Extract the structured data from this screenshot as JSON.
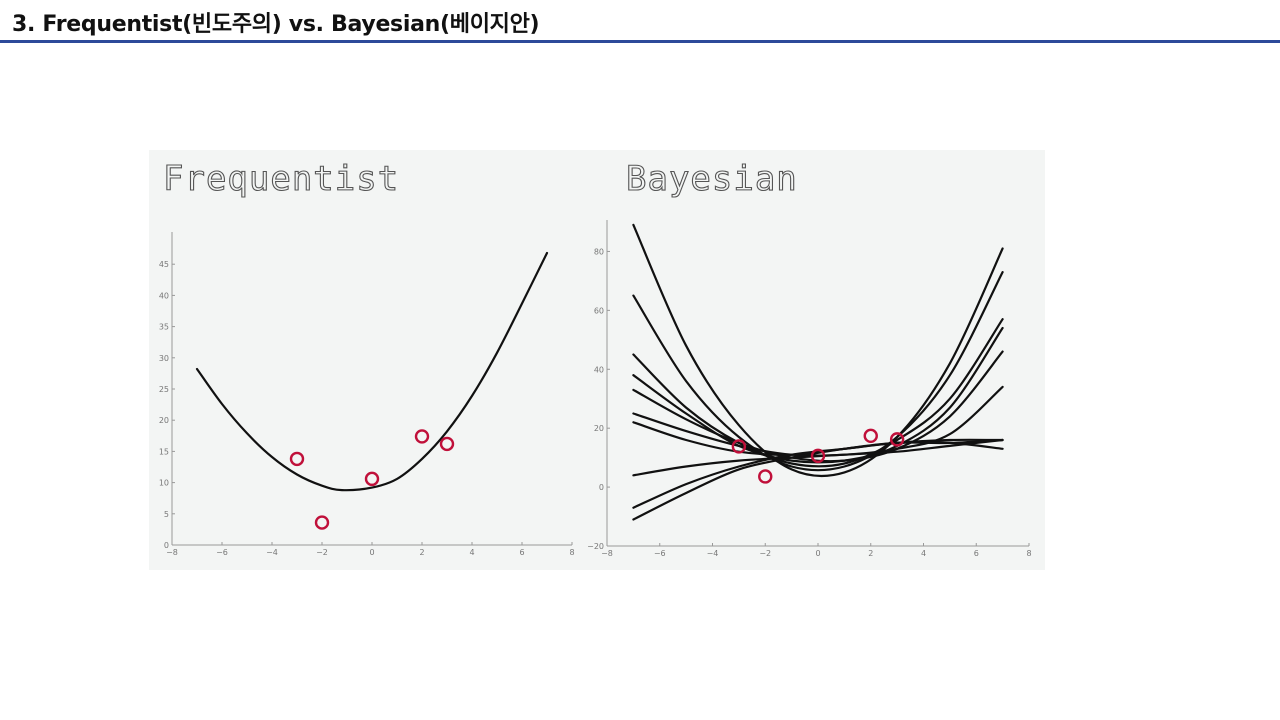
{
  "slide": {
    "title": "3. Frequentist(빈도주의) vs. Bayesian(베이지안)",
    "accent_color": "#2d4a9a"
  },
  "chart_data": [
    {
      "type": "line",
      "title": "Frequentist",
      "xlim": [
        -8,
        8
      ],
      "ylim": [
        0,
        50
      ],
      "xticks": [
        -8,
        -6,
        -4,
        -2,
        0,
        2,
        4,
        6,
        8
      ],
      "yticks": [
        0,
        5,
        10,
        15,
        20,
        25,
        30,
        35,
        40,
        45
      ],
      "grid": false,
      "points": {
        "x": [
          -3,
          -2,
          0,
          2,
          3
        ],
        "y": [
          13.8,
          3.6,
          10.6,
          17.4,
          16.2
        ],
        "marker": "open-circle",
        "color": "#c0103a"
      },
      "series": [
        {
          "x": [
            -7,
            -6,
            -5,
            -4,
            -3,
            -2,
            -1.2,
            0,
            1,
            2,
            3,
            4,
            5,
            6,
            7
          ],
          "y": [
            28.2,
            22.6,
            17.9,
            14.1,
            11.3,
            9.5,
            8.8,
            9.2,
            10.6,
            13.8,
            18.2,
            23.9,
            30.8,
            38.7,
            46.8
          ],
          "color": "#111111"
        }
      ]
    },
    {
      "type": "line",
      "title": "Bayesian",
      "xlim": [
        -8,
        8
      ],
      "ylim": [
        -20,
        90
      ],
      "xticks": [
        -8,
        -6,
        -4,
        -2,
        0,
        2,
        4,
        6,
        8
      ],
      "yticks": [
        -20,
        0,
        20,
        40,
        60,
        80
      ],
      "grid": false,
      "points": {
        "x": [
          -3,
          -2,
          0,
          2,
          3
        ],
        "y": [
          13.8,
          3.6,
          10.6,
          17.4,
          16.2
        ],
        "marker": "open-circle",
        "color": "#c0103a"
      },
      "series": [
        {
          "x": [
            -7,
            -5,
            -3,
            -1,
            1,
            3,
            5,
            7
          ],
          "y": [
            89,
            48,
            21,
            6,
            5,
            17,
            42,
            81
          ],
          "color": "#111111"
        },
        {
          "x": [
            -7,
            -5,
            -3,
            -1,
            1,
            3,
            5,
            7
          ],
          "y": [
            65,
            36,
            17,
            7,
            7,
            17,
            38,
            73
          ],
          "color": "#111111"
        },
        {
          "x": [
            -7,
            -5,
            -3,
            -1,
            1,
            3,
            5,
            7
          ],
          "y": [
            45,
            27,
            15,
            8,
            8,
            16,
            30,
            57
          ],
          "color": "#111111"
        },
        {
          "x": [
            -7,
            -5,
            -3,
            -1,
            1,
            3,
            5,
            7
          ],
          "y": [
            38,
            25,
            14,
            9,
            9,
            14,
            27,
            54
          ],
          "color": "#111111"
        },
        {
          "x": [
            -7,
            -5,
            -3,
            -1,
            1,
            3,
            5,
            7
          ],
          "y": [
            33,
            23,
            15,
            10,
            9,
            13,
            24,
            46
          ],
          "color": "#111111"
        },
        {
          "x": [
            -7,
            -5,
            -3,
            -1,
            1,
            3,
            5,
            7
          ],
          "y": [
            25,
            19,
            14,
            11,
            11,
            13,
            18,
            34
          ],
          "color": "#111111"
        },
        {
          "x": [
            -7,
            -5,
            -3,
            -1,
            1,
            3,
            5,
            7
          ],
          "y": [
            22,
            16,
            12,
            11,
            13,
            15,
            16,
            16
          ],
          "color": "#111111"
        },
        {
          "x": [
            -7,
            -5,
            -3,
            -1,
            1,
            3,
            5,
            7
          ],
          "y": [
            4,
            7,
            9,
            10,
            11,
            12,
            14,
            16
          ],
          "color": "#111111"
        },
        {
          "x": [
            -7,
            -5,
            -3,
            -1,
            1,
            3,
            5,
            7
          ],
          "y": [
            -7,
            1,
            7,
            11,
            13,
            15,
            15,
            16
          ],
          "color": "#111111"
        },
        {
          "x": [
            -7,
            -5,
            -3,
            -1,
            1,
            3,
            5,
            7
          ],
          "y": [
            -11,
            -2,
            6,
            10,
            13,
            15,
            15,
            13
          ],
          "color": "#111111"
        }
      ]
    }
  ]
}
